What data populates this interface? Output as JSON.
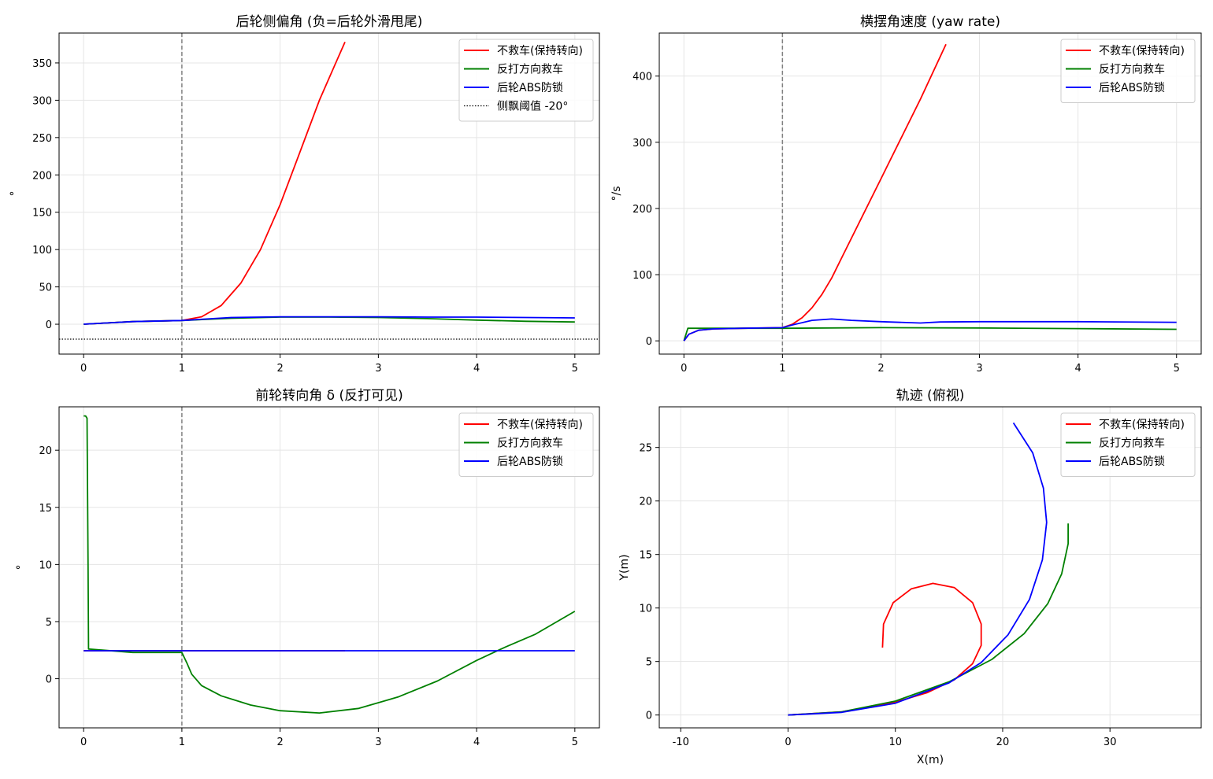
{
  "colors": {
    "no_rescue": "#ff0000",
    "countersteer": "#008000",
    "rear_abs": "#0000ff",
    "marker_line": "#808080",
    "grid": "#e5e5e5"
  },
  "legend": {
    "no_rescue": "不救车(保持转向)",
    "countersteer": "反打方向救车",
    "rear_abs": "后轮ABS防锁",
    "threshold": "侧飘阈值 -20°"
  },
  "chart_data": [
    {
      "type": "line",
      "title": "后轮侧偏角 (负=后轮外滑甩尾)",
      "xlabel": "",
      "ylabel": "°",
      "xlim": [
        -0.25,
        5.25
      ],
      "ylim": [
        -40,
        390
      ],
      "xticks": [
        0,
        1,
        2,
        3,
        4,
        5
      ],
      "yticks": [
        0,
        50,
        100,
        150,
        200,
        250,
        300,
        350
      ],
      "grid": true,
      "legend_position": "top-right",
      "vline_x": 1,
      "hline": {
        "y": -20,
        "name": "侧飘阈值 -20°"
      },
      "series": [
        {
          "key": "no_rescue",
          "name": "不救车(保持转向)",
          "points": [
            [
              0,
              0
            ],
            [
              0.5,
              3.5
            ],
            [
              1,
              5
            ],
            [
              1.2,
              10
            ],
            [
              1.4,
              25
            ],
            [
              1.6,
              55
            ],
            [
              1.8,
              100
            ],
            [
              2,
              160
            ],
            [
              2.2,
              230
            ],
            [
              2.4,
              300
            ],
            [
              2.55,
              345
            ],
            [
              2.66,
              378
            ]
          ]
        },
        {
          "key": "countersteer",
          "name": "反打方向救车",
          "points": [
            [
              0,
              0
            ],
            [
              0.5,
              3.5
            ],
            [
              1,
              5
            ],
            [
              1.5,
              8
            ],
            [
              2,
              9.5
            ],
            [
              2.5,
              9.5
            ],
            [
              3,
              9
            ],
            [
              3.5,
              7.5
            ],
            [
              4,
              5.5
            ],
            [
              4.5,
              4
            ],
            [
              5,
              3
            ]
          ]
        },
        {
          "key": "rear_abs",
          "name": "后轮ABS防锁",
          "points": [
            [
              0,
              0
            ],
            [
              0.5,
              3.5
            ],
            [
              1,
              5
            ],
            [
              1.5,
              9
            ],
            [
              2,
              10
            ],
            [
              2.5,
              10
            ],
            [
              3,
              10
            ],
            [
              3.5,
              9.5
            ],
            [
              4,
              9.5
            ],
            [
              4.5,
              9
            ],
            [
              5,
              8.5
            ]
          ]
        }
      ]
    },
    {
      "type": "line",
      "title": "横摆角速度 (yaw rate)",
      "xlabel": "",
      "ylabel": "°/s",
      "xlim": [
        -0.25,
        5.25
      ],
      "ylim": [
        -20,
        465
      ],
      "xticks": [
        0,
        1,
        2,
        3,
        4,
        5
      ],
      "yticks": [
        0,
        100,
        200,
        300,
        400
      ],
      "grid": true,
      "legend_position": "top-right",
      "vline_x": 1,
      "series": [
        {
          "key": "no_rescue",
          "name": "不救车(保持转向)",
          "points": [
            [
              0,
              0
            ],
            [
              0.05,
              10
            ],
            [
              0.15,
              16
            ],
            [
              0.3,
              18
            ],
            [
              0.6,
              19
            ],
            [
              1,
              20
            ],
            [
              1.1,
              25
            ],
            [
              1.2,
              35
            ],
            [
              1.3,
              50
            ],
            [
              1.4,
              70
            ],
            [
              1.5,
              95
            ],
            [
              1.6,
              125
            ],
            [
              2,
              245
            ],
            [
              2.4,
              365
            ],
            [
              2.66,
              448
            ]
          ]
        },
        {
          "key": "countersteer",
          "name": "反打方向救车",
          "points": [
            [
              0,
              0
            ],
            [
              0.04,
              19
            ],
            [
              1,
              19
            ],
            [
              2,
              20
            ],
            [
              3,
              19.5
            ],
            [
              4,
              18.5
            ],
            [
              5,
              17.5
            ]
          ]
        },
        {
          "key": "rear_abs",
          "name": "后轮ABS防锁",
          "points": [
            [
              0,
              0
            ],
            [
              0.05,
              10
            ],
            [
              0.15,
              16
            ],
            [
              0.3,
              18
            ],
            [
              0.6,
              19
            ],
            [
              1,
              20
            ],
            [
              1.1,
              24
            ],
            [
              1.3,
              31
            ],
            [
              1.5,
              33
            ],
            [
              1.7,
              31
            ],
            [
              2,
              29
            ],
            [
              2.4,
              27
            ],
            [
              2.6,
              28.5
            ],
            [
              3,
              29
            ],
            [
              4,
              29
            ],
            [
              5,
              28
            ]
          ]
        }
      ]
    },
    {
      "type": "line",
      "title": "前轮转向角 δ (反打可见)",
      "xlabel": "",
      "ylabel": "°",
      "xlim": [
        -0.25,
        5.25
      ],
      "ylim": [
        -4.3,
        23.8
      ],
      "xticks": [
        0,
        1,
        2,
        3,
        4,
        5
      ],
      "yticks": [
        0,
        5,
        10,
        15,
        20
      ],
      "grid": true,
      "legend_position": "top-right",
      "vline_x": 1,
      "series": [
        {
          "key": "no_rescue",
          "name": "不救车(保持转向)",
          "points": [
            [
              0,
              2.45
            ],
            [
              2.66,
              2.45
            ]
          ]
        },
        {
          "key": "countersteer",
          "name": "反打方向救车",
          "points": [
            [
              0,
              23
            ],
            [
              0.02,
              23
            ],
            [
              0.035,
              22.8
            ],
            [
              0.045,
              10
            ],
            [
              0.05,
              2.6
            ],
            [
              0.5,
              2.3
            ],
            [
              1,
              2.3
            ],
            [
              1.05,
              1.4
            ],
            [
              1.1,
              0.4
            ],
            [
              1.2,
              -0.6
            ],
            [
              1.4,
              -1.5
            ],
            [
              1.7,
              -2.3
            ],
            [
              2,
              -2.8
            ],
            [
              2.4,
              -3
            ],
            [
              2.8,
              -2.6
            ],
            [
              3.2,
              -1.6
            ],
            [
              3.6,
              -0.2
            ],
            [
              4,
              1.6
            ],
            [
              4.3,
              2.8
            ],
            [
              4.6,
              3.9
            ],
            [
              5,
              5.9
            ]
          ]
        },
        {
          "key": "rear_abs",
          "name": "后轮ABS防锁",
          "points": [
            [
              0,
              2.45
            ],
            [
              5,
              2.45
            ]
          ]
        }
      ]
    },
    {
      "type": "line",
      "title": "轨迹 (俯视)",
      "xlabel": "X(m)",
      "ylabel": "Y(m)",
      "xlim": [
        -12,
        38.5
      ],
      "ylim": [
        -1.2,
        28.8
      ],
      "xticks": [
        -10,
        0,
        10,
        20,
        30
      ],
      "yticks": [
        0,
        5,
        10,
        15,
        20,
        25
      ],
      "grid": true,
      "legend_position": "top-right",
      "series": [
        {
          "key": "no_rescue",
          "name": "不救车(保持转向)",
          "points": [
            [
              0,
              0
            ],
            [
              5,
              0.3
            ],
            [
              10,
              1.2
            ],
            [
              13,
              2.1
            ],
            [
              15.5,
              3.3
            ],
            [
              17.2,
              4.8
            ],
            [
              18,
              6.5
            ],
            [
              18,
              8.5
            ],
            [
              17.2,
              10.5
            ],
            [
              15.5,
              11.9
            ],
            [
              13.5,
              12.3
            ],
            [
              11.5,
              11.8
            ],
            [
              9.8,
              10.5
            ],
            [
              8.9,
              8.5
            ],
            [
              8.8,
              6.3
            ]
          ]
        },
        {
          "key": "countersteer",
          "name": "反打方向救车",
          "points": [
            [
              0,
              0
            ],
            [
              5,
              0.3
            ],
            [
              10,
              1.3
            ],
            [
              15,
              3.1
            ],
            [
              19,
              5.2
            ],
            [
              22,
              7.6
            ],
            [
              24.2,
              10.4
            ],
            [
              25.5,
              13.2
            ],
            [
              26.1,
              16
            ],
            [
              26.1,
              17.9
            ]
          ]
        },
        {
          "key": "rear_abs",
          "name": "后轮ABS防锁",
          "points": [
            [
              0,
              0
            ],
            [
              5,
              0.25
            ],
            [
              10,
              1.1
            ],
            [
              15,
              3
            ],
            [
              18,
              4.9
            ],
            [
              20.5,
              7.5
            ],
            [
              22.5,
              10.8
            ],
            [
              23.7,
              14.5
            ],
            [
              24.1,
              18
            ],
            [
              23.8,
              21.2
            ],
            [
              22.8,
              24.5
            ],
            [
              21,
              27.3
            ]
          ]
        }
      ]
    }
  ]
}
